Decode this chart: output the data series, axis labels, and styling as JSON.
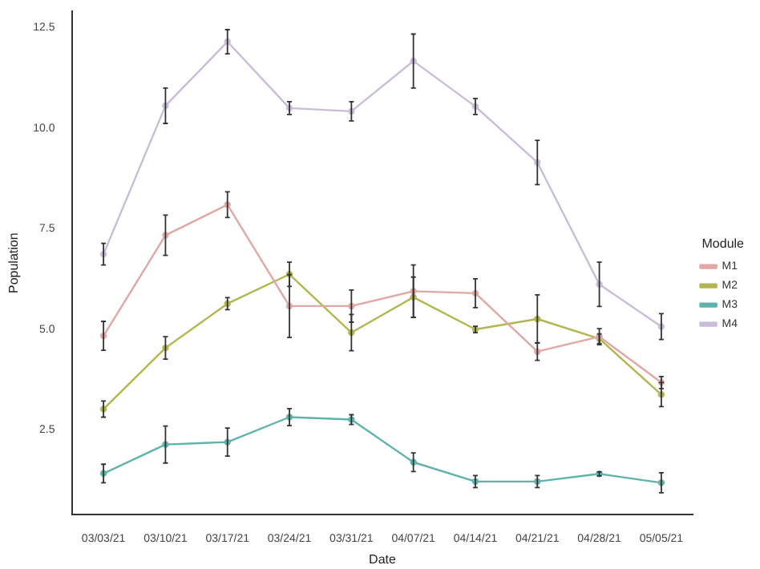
{
  "chart_data": {
    "type": "line",
    "xlabel": "Date",
    "ylabel": "Population",
    "legend_title": "Module",
    "legend": "right",
    "grid": false,
    "marker": "circle",
    "line_style": "solid",
    "categories": [
      "03/03/21",
      "03/10/21",
      "03/17/21",
      "03/24/21",
      "03/31/21",
      "04/07/21",
      "04/14/21",
      "04/21/21",
      "04/28/21",
      "05/05/21"
    ],
    "ylim": [
      0.4,
      12.9
    ],
    "yticks": [
      {
        "value": 2.5,
        "label": "2.5"
      },
      {
        "value": 5,
        "label": "5.0"
      },
      {
        "value": 7.5,
        "label": "7.5"
      },
      {
        "value": 10,
        "label": "10.0"
      },
      {
        "value": 12.5,
        "label": "12.5"
      }
    ],
    "series": [
      {
        "name": "M1",
        "color": "#e0a8a4",
        "values": [
          4.84,
          7.34,
          8.1,
          5.58,
          5.58,
          5.95,
          5.9,
          4.45,
          4.82,
          3.68
        ],
        "errors": [
          0.36,
          0.5,
          0.32,
          0.78,
          0.4,
          0.65,
          0.36,
          0.22,
          0.2,
          0.15
        ]
      },
      {
        "name": "M2",
        "color": "#b3b650",
        "values": [
          3.02,
          4.54,
          5.64,
          6.37,
          4.92,
          5.8,
          5.0,
          5.26,
          4.77,
          3.38
        ],
        "errors": [
          0.2,
          0.28,
          0.15,
          0.3,
          0.45,
          0.5,
          0.08,
          0.6,
          0.12,
          0.3
        ]
      },
      {
        "name": "M3",
        "color": "#5fb3ab",
        "values": [
          1.42,
          2.14,
          2.2,
          2.82,
          2.76,
          1.7,
          1.22,
          1.22,
          1.41,
          1.19
        ],
        "errors": [
          0.23,
          0.46,
          0.35,
          0.21,
          0.12,
          0.23,
          0.15,
          0.15,
          0.05,
          0.25
        ]
      },
      {
        "name": "M4",
        "color": "#c9bcd9",
        "values": [
          6.87,
          10.56,
          12.15,
          10.5,
          10.42,
          11.67,
          10.54,
          9.15,
          6.12,
          5.07
        ],
        "errors": [
          0.27,
          0.44,
          0.3,
          0.16,
          0.24,
          0.67,
          0.2,
          0.55,
          0.55,
          0.32
        ]
      }
    ]
  }
}
